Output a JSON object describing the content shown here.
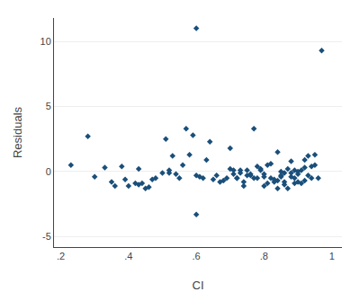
{
  "chart_data": {
    "type": "scatter",
    "x": [
      0.23,
      0.28,
      0.3,
      0.33,
      0.35,
      0.36,
      0.38,
      0.39,
      0.4,
      0.42,
      0.43,
      0.43,
      0.44,
      0.45,
      0.46,
      0.47,
      0.48,
      0.5,
      0.51,
      0.52,
      0.52,
      0.53,
      0.54,
      0.55,
      0.56,
      0.57,
      0.58,
      0.59,
      0.6,
      0.6,
      0.61,
      0.62,
      0.63,
      0.64,
      0.65,
      0.66,
      0.67,
      0.68,
      0.69,
      0.7,
      0.7,
      0.71,
      0.71,
      0.72,
      0.72,
      0.73,
      0.73,
      0.74,
      0.74,
      0.75,
      0.75,
      0.76,
      0.76,
      0.77,
      0.77,
      0.78,
      0.78,
      0.79,
      0.79,
      0.8,
      0.8,
      0.8,
      0.81,
      0.81,
      0.82,
      0.82,
      0.83,
      0.83,
      0.84,
      0.84,
      0.84,
      0.85,
      0.85,
      0.85,
      0.86,
      0.86,
      0.86,
      0.87,
      0.87,
      0.88,
      0.88,
      0.88,
      0.89,
      0.89,
      0.89,
      0.9,
      0.9,
      0.9,
      0.91,
      0.91,
      0.92,
      0.92,
      0.92,
      0.93,
      0.93,
      0.94,
      0.94,
      0.95,
      0.95,
      0.96,
      0.6,
      0.97
    ],
    "values": [
      0.5,
      2.7,
      -0.4,
      0.3,
      -0.8,
      -1.1,
      0.4,
      -0.6,
      -1.1,
      -0.9,
      -1.0,
      0.2,
      -0.9,
      -1.3,
      -1.2,
      -0.6,
      -0.5,
      -0.1,
      2.5,
      -0.1,
      0.1,
      1.2,
      -0.2,
      -0.5,
      0.5,
      3.3,
      1.3,
      2.8,
      11.0,
      -0.3,
      -0.4,
      -0.5,
      0.9,
      2.3,
      -0.6,
      -0.3,
      -0.8,
      -0.7,
      -0.5,
      1.8,
      0.2,
      -0.2,
      0.1,
      -0.5,
      -0.5,
      0.1,
      -0.1,
      -0.8,
      -1.1,
      0.1,
      -0.3,
      -0.3,
      -0.2,
      -0.5,
      3.3,
      -0.5,
      0.4,
      0.2,
      0.1,
      -0.2,
      -0.4,
      -1.1,
      0.5,
      -0.9,
      -0.5,
      0.6,
      -0.8,
      -0.6,
      1.5,
      -0.7,
      -1.3,
      0.0,
      -0.4,
      -0.3,
      -0.8,
      -0.1,
      -1.0,
      0.2,
      -1.3,
      -0.1,
      -0.4,
      0.8,
      0.1,
      -0.5,
      -0.9,
      0.0,
      -0.2,
      -0.8,
      -0.9,
      0.1,
      -0.7,
      0.9,
      0.3,
      1.2,
      -0.3,
      0.4,
      -0.5,
      1.3,
      0.5,
      -0.5,
      -3.3,
      9.3
    ],
    "xlabel": "CI",
    "ylabel": "Residuals",
    "xlim": [
      0.18,
      1.03
    ],
    "ylim": [
      -5.8,
      11.8
    ],
    "xticks": [
      {
        "value": 0.2,
        "label": ".2"
      },
      {
        "value": 0.4,
        "label": ".4"
      },
      {
        "value": 0.6,
        "label": ".6"
      },
      {
        "value": 0.8,
        "label": ".8"
      },
      1
    ],
    "yticks": [
      -5,
      0,
      5,
      10
    ],
    "color": "#1a4f7a",
    "marker": "diamond",
    "grid": "y"
  }
}
